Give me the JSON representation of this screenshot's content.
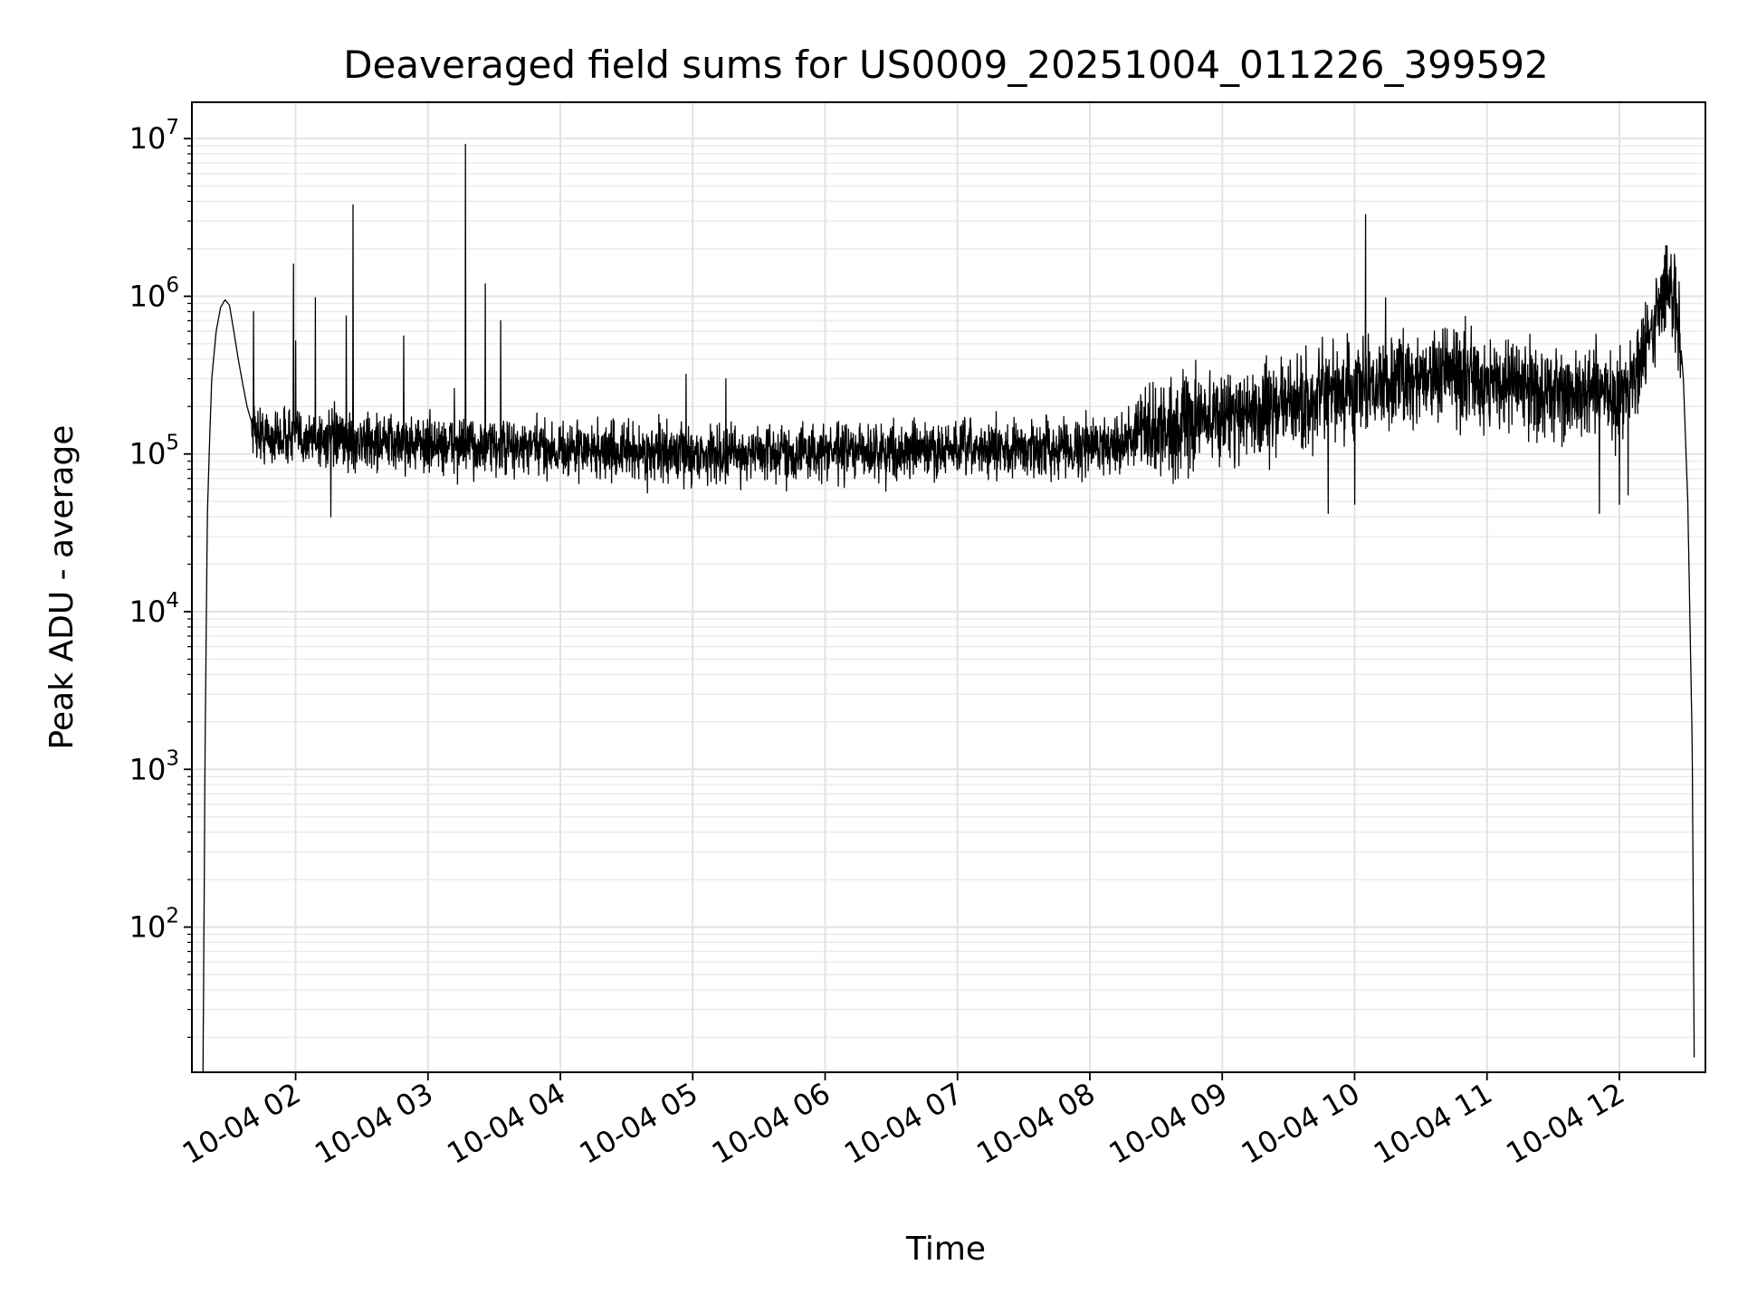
{
  "chart_data": {
    "type": "line",
    "title": "Deaveraged field sums for US0009_20251004_011226_399592",
    "xlabel": "Time",
    "ylabel": "Peak ADU - average",
    "yscale": "log",
    "grid": true,
    "line_color": "#000000",
    "xlim": [
      "2025-10-04 01:13",
      "2025-10-04 12:39"
    ],
    "ylim": [
      12,
      17000000
    ],
    "x_ticks": [
      {
        "value": "2025-10-04 02:00",
        "label": "10-04 02"
      },
      {
        "value": "2025-10-04 03:00",
        "label": "10-04 03"
      },
      {
        "value": "2025-10-04 04:00",
        "label": "10-04 04"
      },
      {
        "value": "2025-10-04 05:00",
        "label": "10-04 05"
      },
      {
        "value": "2025-10-04 06:00",
        "label": "10-04 06"
      },
      {
        "value": "2025-10-04 07:00",
        "label": "10-04 07"
      },
      {
        "value": "2025-10-04 08:00",
        "label": "10-04 08"
      },
      {
        "value": "2025-10-04 09:00",
        "label": "10-04 09"
      },
      {
        "value": "2025-10-04 10:00",
        "label": "10-04 10"
      },
      {
        "value": "2025-10-04 11:00",
        "label": "10-04 11"
      },
      {
        "value": "2025-10-04 12:00",
        "label": "10-04 12"
      }
    ],
    "y_ticks": [
      {
        "value": 100,
        "base": "10",
        "exp": "2"
      },
      {
        "value": 1000,
        "base": "10",
        "exp": "3"
      },
      {
        "value": 10000,
        "base": "10",
        "exp": "4"
      },
      {
        "value": 100000,
        "base": "10",
        "exp": "5"
      },
      {
        "value": 1000000,
        "base": "10",
        "exp": "6"
      },
      {
        "value": 10000000,
        "base": "10",
        "exp": "7"
      }
    ],
    "series": [
      {
        "points": [
          [
            "2025-10-04 01:18",
            10
          ],
          [
            "2025-10-04 01:19",
            1500
          ],
          [
            "2025-10-04 01:20",
            40000
          ],
          [
            "2025-10-04 01:21",
            120000
          ],
          [
            "2025-10-04 01:22",
            300000
          ],
          [
            "2025-10-04 01:24",
            600000
          ],
          [
            "2025-10-04 01:26",
            850000
          ],
          [
            "2025-10-04 01:28",
            950000
          ],
          [
            "2025-10-04 01:30",
            880000
          ],
          [
            "2025-10-04 01:32",
            600000
          ],
          [
            "2025-10-04 01:34",
            400000
          ],
          [
            "2025-10-04 01:36",
            280000
          ],
          [
            "2025-10-04 01:38",
            200000
          ],
          [
            "2025-10-04 01:40",
            160000
          ],
          [
            "2025-10-04 01:42",
            140000
          ],
          [
            "2025-10-04 01:45",
            130000
          ],
          [
            "2025-10-04 01:50",
            125000
          ],
          [
            "2025-10-04 01:55",
            130000
          ],
          [
            "2025-10-04 02:00",
            128000
          ],
          [
            "2025-10-04 02:10",
            125000
          ],
          [
            "2025-10-04 02:20",
            122000
          ],
          [
            "2025-10-04 02:40",
            118000
          ],
          [
            "2025-10-04 03:00",
            115000
          ],
          [
            "2025-10-04 03:30",
            110000
          ],
          [
            "2025-10-04 04:00",
            108000
          ],
          [
            "2025-10-04 04:30",
            103000
          ],
          [
            "2025-10-04 05:00",
            100000
          ],
          [
            "2025-10-04 05:30",
            102000
          ],
          [
            "2025-10-04 06:00",
            103000
          ],
          [
            "2025-10-04 06:30",
            104000
          ],
          [
            "2025-10-04 07:00",
            106000
          ],
          [
            "2025-10-04 07:30",
            108000
          ],
          [
            "2025-10-04 08:00",
            112000
          ],
          [
            "2025-10-04 08:20",
            125000
          ],
          [
            "2025-10-04 08:40",
            155000
          ],
          [
            "2025-10-04 09:00",
            175000
          ],
          [
            "2025-10-04 09:20",
            190000
          ],
          [
            "2025-10-04 09:40",
            215000
          ],
          [
            "2025-10-04 10:00",
            250000
          ],
          [
            "2025-10-04 10:20",
            300000
          ],
          [
            "2025-10-04 10:40",
            320000
          ],
          [
            "2025-10-04 11:00",
            300000
          ],
          [
            "2025-10-04 11:20",
            260000
          ],
          [
            "2025-10-04 11:40",
            230000
          ],
          [
            "2025-10-04 12:00",
            240000
          ],
          [
            "2025-10-04 12:10",
            380000
          ],
          [
            "2025-10-04 12:15",
            600000
          ],
          [
            "2025-10-04 12:19",
            1000000
          ],
          [
            "2025-10-04 12:21",
            1150000
          ],
          [
            "2025-10-04 12:24",
            1050000
          ],
          [
            "2025-10-04 12:27",
            700000
          ],
          [
            "2025-10-04 12:29",
            300000
          ],
          [
            "2025-10-04 12:31",
            50000
          ],
          [
            "2025-10-04 12:33",
            1500
          ],
          [
            "2025-10-04 12:34",
            10
          ]
        ],
        "spikes": [
          [
            "2025-10-04 01:41",
            800000
          ],
          [
            "2025-10-04 01:59",
            1600000
          ],
          [
            "2025-10-04 02:00",
            520000
          ],
          [
            "2025-10-04 02:09",
            980000
          ],
          [
            "2025-10-04 02:16",
            40000
          ],
          [
            "2025-10-04 02:23",
            750000
          ],
          [
            "2025-10-04 02:26",
            3800000
          ],
          [
            "2025-10-04 02:49",
            560000
          ],
          [
            "2025-10-04 03:12",
            260000
          ],
          [
            "2025-10-04 03:17",
            9200000
          ],
          [
            "2025-10-04 03:26",
            1200000
          ],
          [
            "2025-10-04 03:33",
            700000
          ],
          [
            "2025-10-04 04:57",
            320000
          ],
          [
            "2025-10-04 05:15",
            300000
          ],
          [
            "2025-10-04 08:40",
            70000
          ],
          [
            "2025-10-04 09:20",
            420000
          ],
          [
            "2025-10-04 09:48",
            42000
          ],
          [
            "2025-10-04 10:00",
            48000
          ],
          [
            "2025-10-04 10:05",
            3300000
          ],
          [
            "2025-10-04 10:14",
            980000
          ],
          [
            "2025-10-04 10:40",
            620000
          ],
          [
            "2025-10-04 11:51",
            42000
          ],
          [
            "2025-10-04 12:00",
            48000
          ],
          [
            "2025-10-04 12:04",
            55000
          ]
        ]
      }
    ]
  }
}
